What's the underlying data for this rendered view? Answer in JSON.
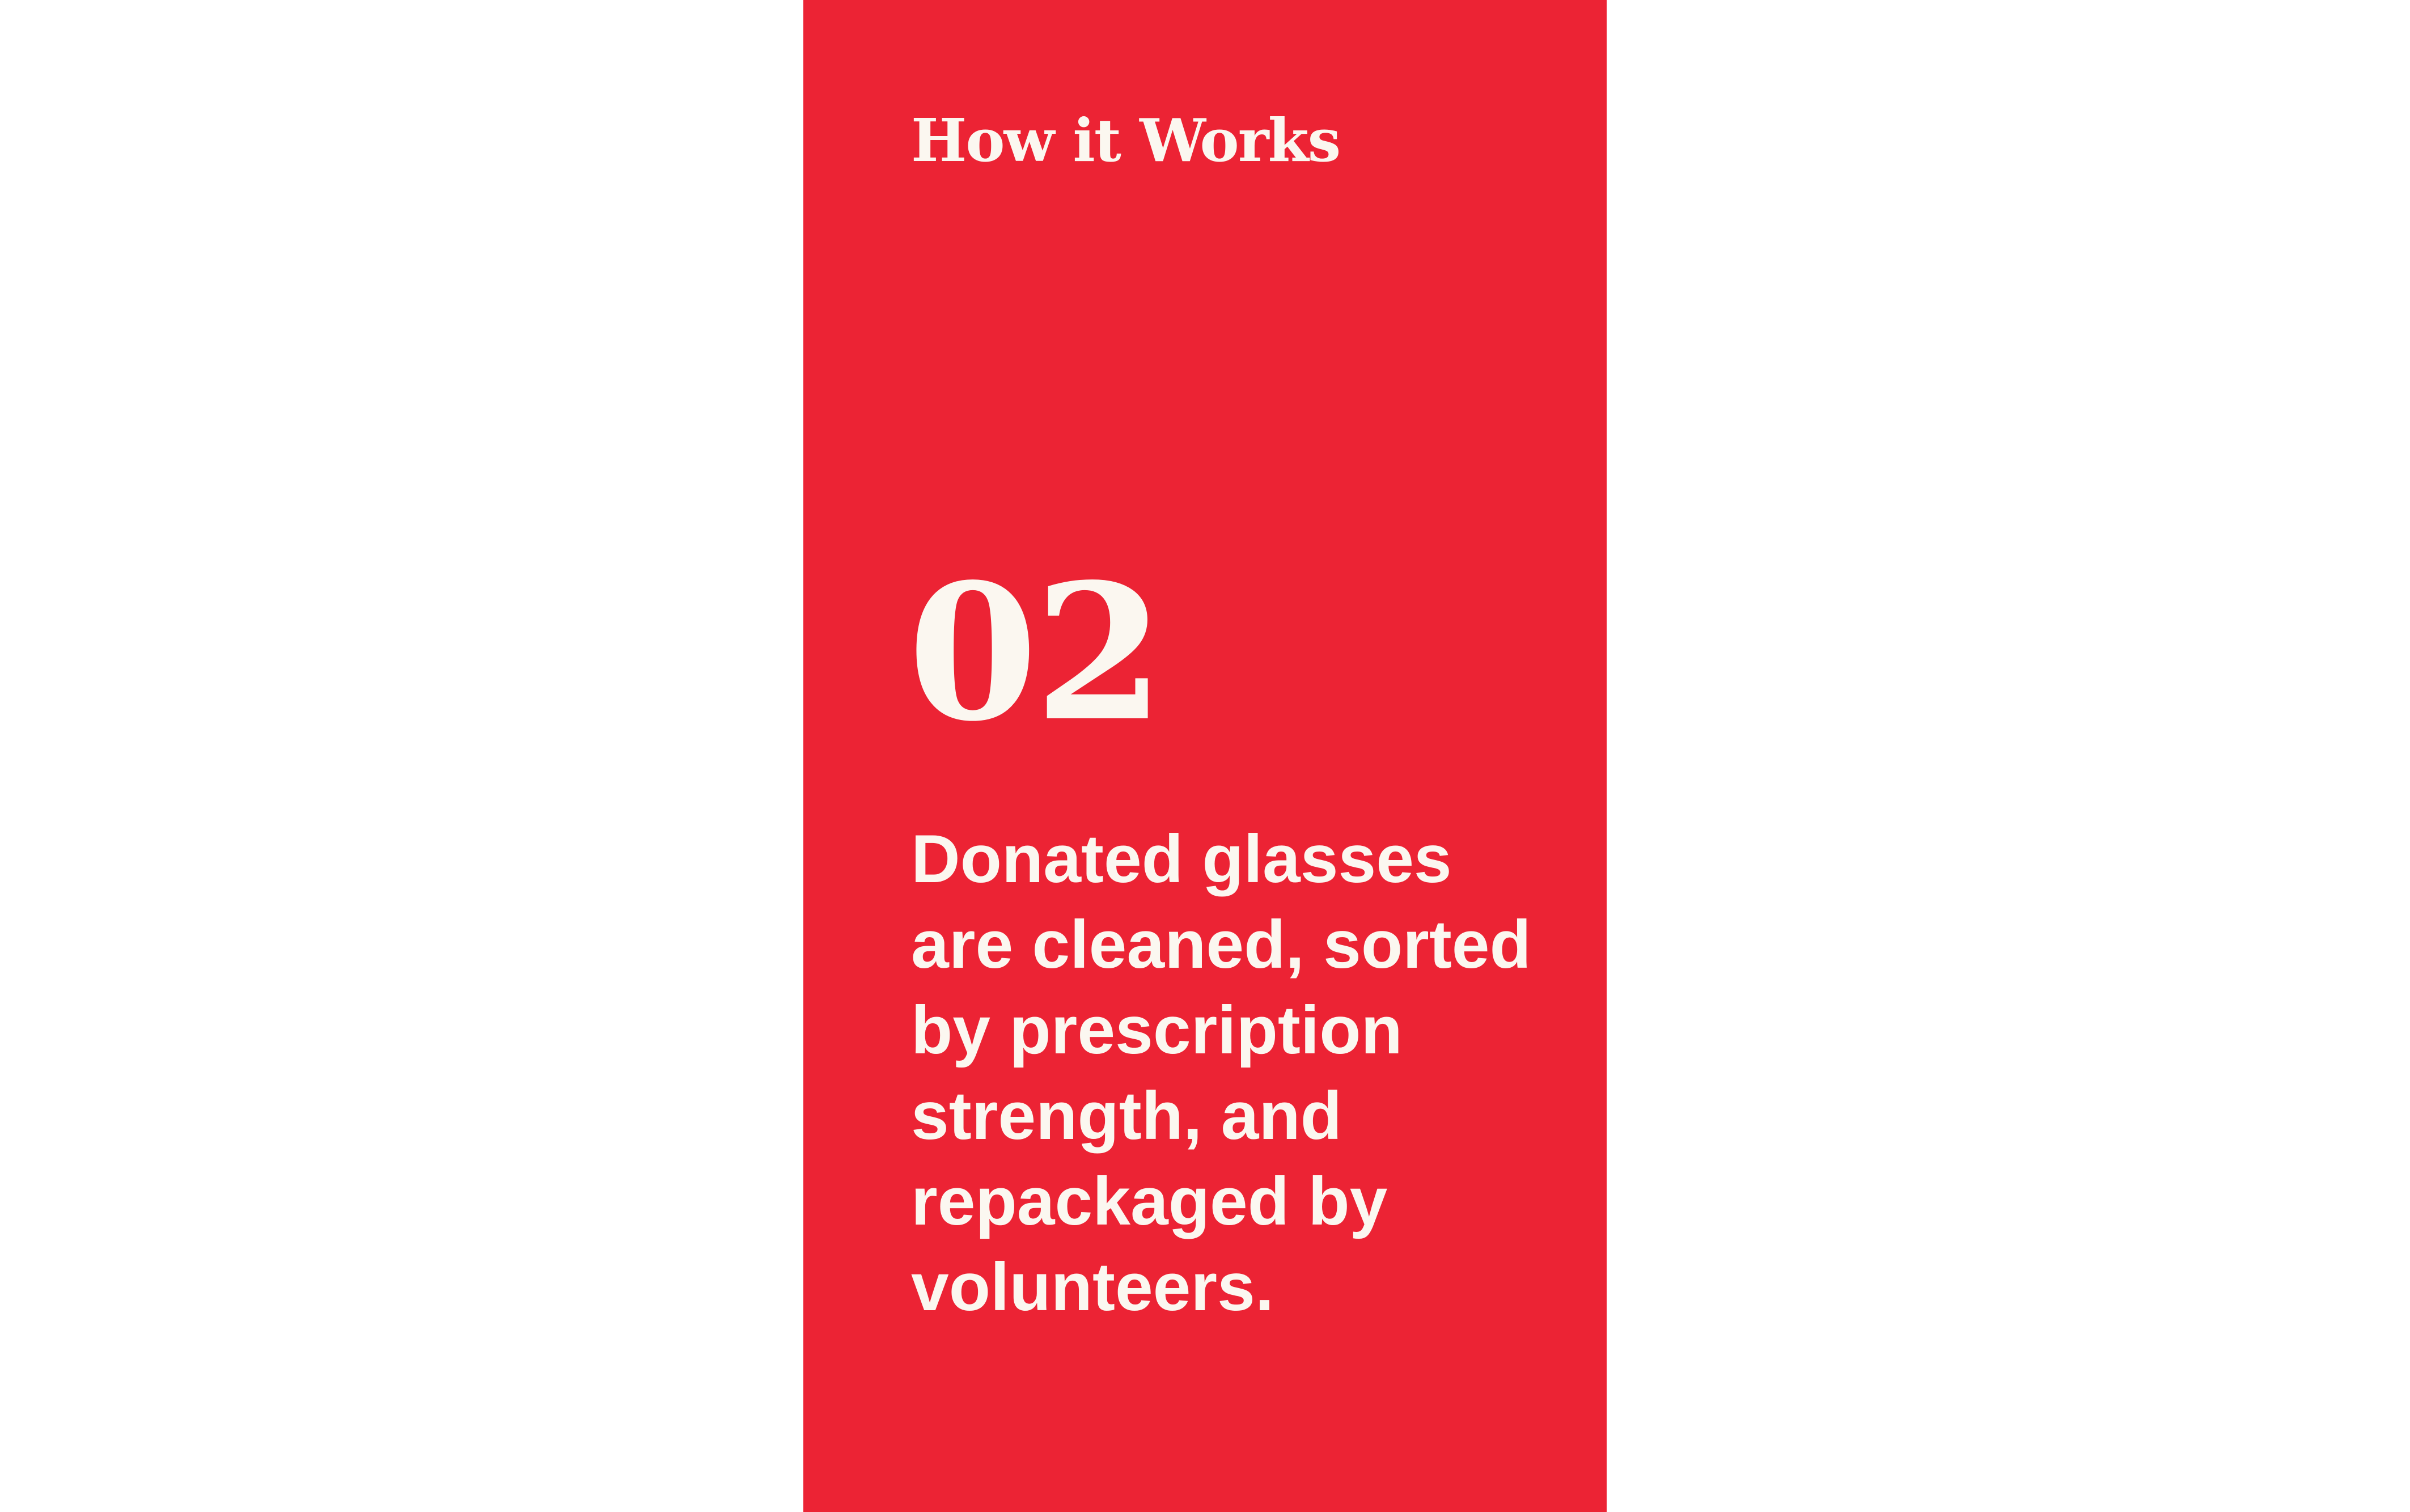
{
  "card": {
    "background_color": "#EC2334",
    "text_color": "#FBF7F0",
    "heading": "How it Works",
    "step_number": "02",
    "description_lines": [
      "Donated glasses",
      "are cleaned, sorted",
      "by prescription",
      "strength, and",
      "repackaged by",
      "volunteers."
    ]
  }
}
